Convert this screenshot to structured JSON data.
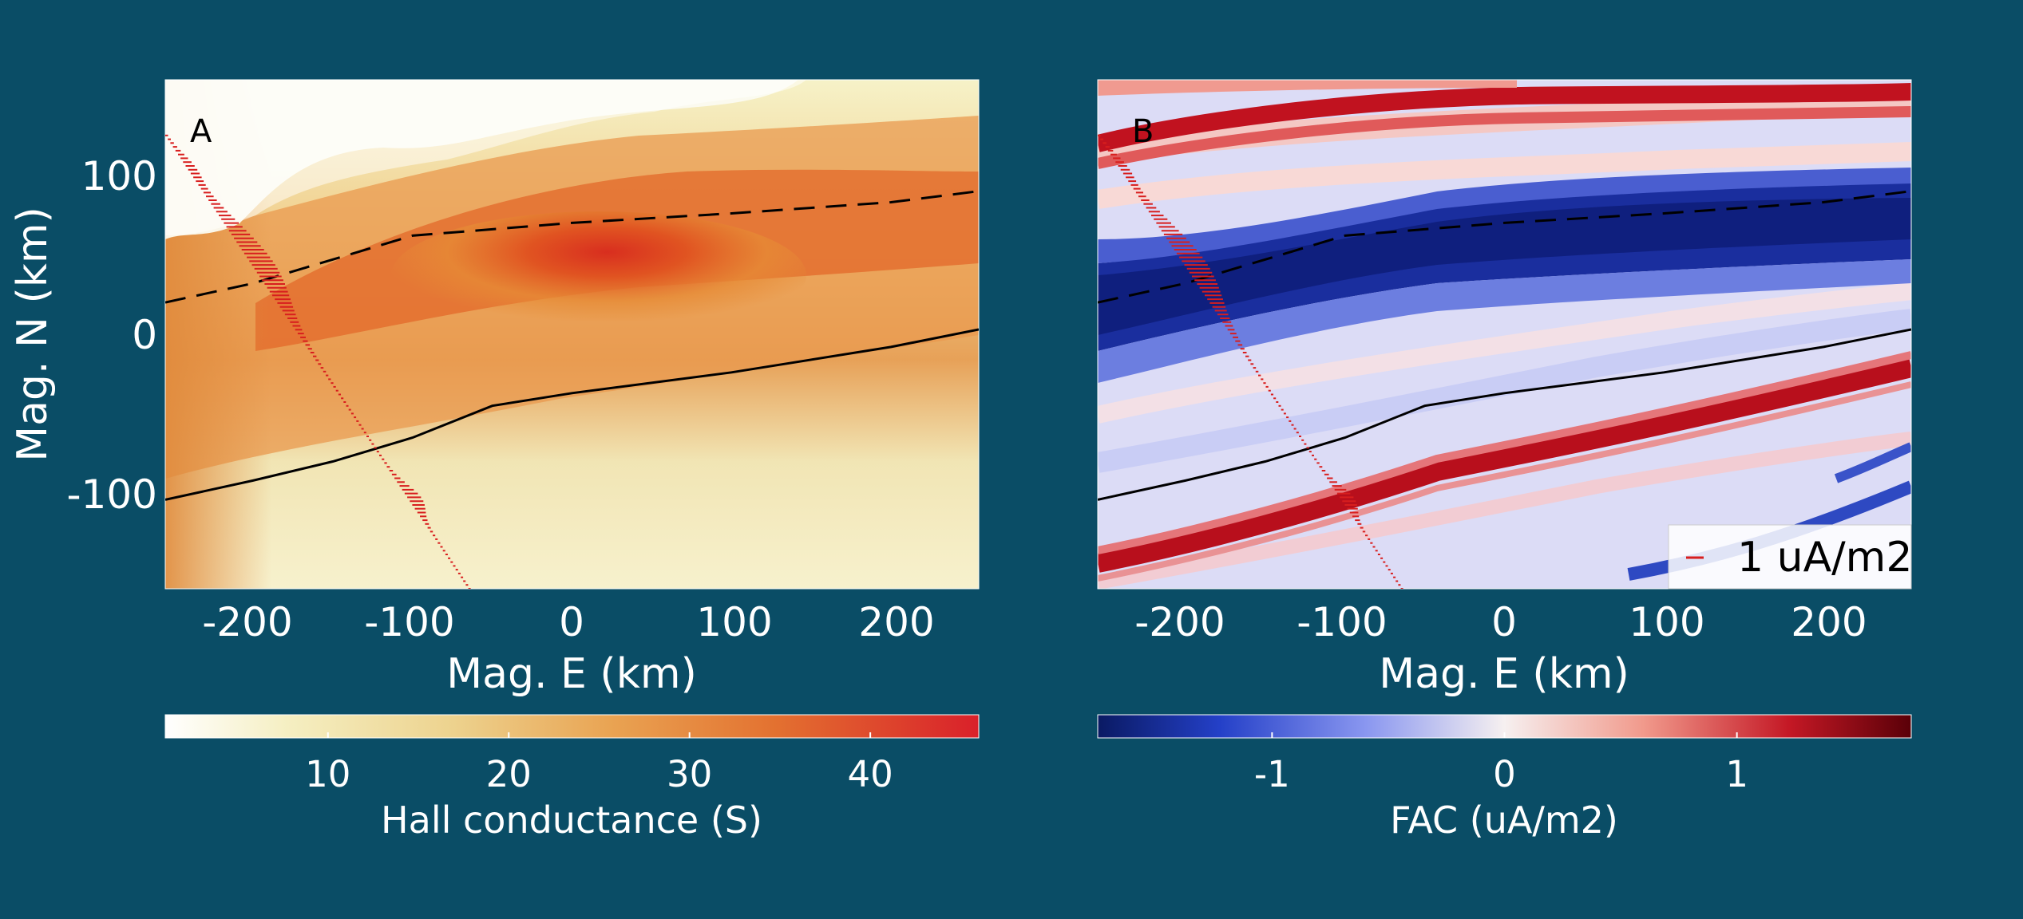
{
  "chart_data": [
    {
      "type": "heatmap",
      "panel_label": "A",
      "xlabel": "Mag. E (km)",
      "ylabel": "Mag. N (km)",
      "xlim": [
        -255,
        255
      ],
      "ylim": [
        -160,
        160
      ],
      "xticks": [
        -200,
        -100,
        0,
        100,
        200
      ],
      "yticks": [
        100,
        0,
        -100
      ],
      "colormap": "white-yellow-orange-red",
      "colorbar": {
        "label": "Hall conductance (S)",
        "range": [
          1,
          46
        ],
        "ticks": [
          10,
          20,
          30,
          40
        ]
      },
      "boundaries": {
        "dashed": {
          "x": [
            -255,
            -200,
            -150,
            -100,
            0,
            100,
            200,
            255
          ],
          "y": [
            20,
            32,
            47,
            62,
            70,
            76,
            83,
            90
          ]
        },
        "solid": {
          "x": [
            -255,
            -200,
            -150,
            -100,
            -50,
            0,
            100,
            200,
            255
          ],
          "y": [
            -104,
            -92,
            -80,
            -65,
            -45,
            -37,
            -24,
            -8,
            3
          ]
        }
      },
      "vectors": {
        "x_start": -255,
        "x_end": -65,
        "y_start": 125,
        "y_end": -160,
        "color": "#d81e1e"
      }
    },
    {
      "type": "heatmap",
      "panel_label": "B",
      "xlabel": "Mag. E (km)",
      "ylabel": "",
      "xlim": [
        -255,
        255
      ],
      "ylim": [
        -160,
        160
      ],
      "xticks": [
        -200,
        -100,
        0,
        100,
        200
      ],
      "colormap": "blue-white-red",
      "colorbar": {
        "label": "FAC (uA/m2)",
        "range": [
          -1.75,
          1.75
        ],
        "ticks": [
          -1,
          0,
          1
        ]
      },
      "boundaries": {
        "dashed": {
          "x": [
            -255,
            -200,
            -150,
            -100,
            0,
            100,
            200,
            255
          ],
          "y": [
            20,
            32,
            47,
            62,
            70,
            76,
            83,
            90
          ]
        },
        "solid": {
          "x": [
            -255,
            -200,
            -150,
            -100,
            -50,
            0,
            100,
            200,
            255
          ],
          "y": [
            -104,
            -92,
            -80,
            -65,
            -45,
            -37,
            -24,
            -8,
            3
          ]
        }
      },
      "vectors": {
        "x_start": -255,
        "x_end": -65,
        "y_start": 125,
        "y_end": -160,
        "color": "#d81e1e"
      },
      "legend": {
        "label": "1 uA/m2",
        "position": "bottom-right"
      }
    }
  ]
}
